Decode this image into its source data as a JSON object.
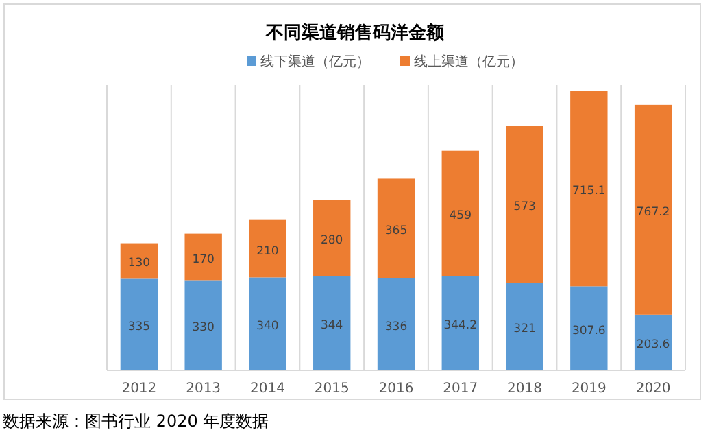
{
  "chart_data": {
    "type": "bar",
    "title": "不同渠道销售码洋金额",
    "stacked": true,
    "data_labels": true,
    "grid": "x",
    "legend": "top",
    "categories": [
      "2012",
      "2013",
      "2014",
      "2015",
      "2016",
      "2017",
      "2018",
      "2019",
      "2020"
    ],
    "series": [
      {
        "name": "线下渠道（亿元）",
        "color": "#5b9bd5",
        "values": [
          335,
          330,
          340,
          344,
          336,
          344.2,
          321,
          307.6,
          203.6
        ]
      },
      {
        "name": "线上渠道（亿元）",
        "color": "#ed7d31",
        "values": [
          130,
          170,
          210,
          280,
          365,
          459,
          573,
          715.1,
          767.2
        ]
      }
    ],
    "annotations": [
      "数据来源：图书行业 2020 年度数据"
    ]
  }
}
